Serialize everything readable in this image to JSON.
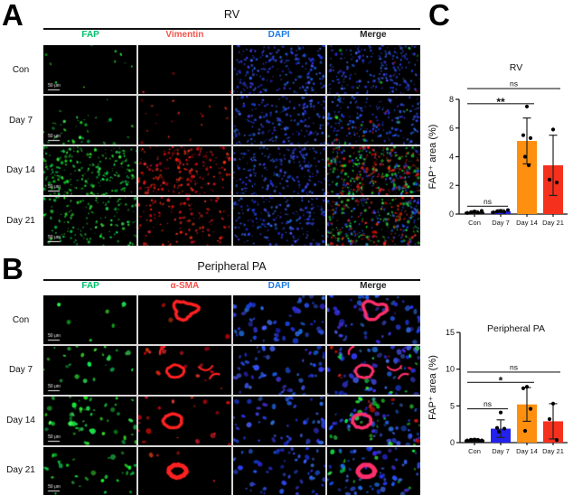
{
  "panels": {
    "A": {
      "label": "A",
      "title": "RV",
      "scale_bar_label": "50 μm",
      "columns": [
        {
          "label": "FAP",
          "color": "#00c06a"
        },
        {
          "label": "Vimentin",
          "color": "#f4534b"
        },
        {
          "label": "DAPI",
          "color": "#1c79e8"
        },
        {
          "label": "Merge",
          "color": "#222222"
        }
      ],
      "rows": [
        {
          "label": "Con",
          "cells": [
            {
              "green": 0.04
            },
            {
              "red": 0.012
            },
            {
              "blue": 0.85
            },
            {
              "blue": 0.85,
              "green": 0.02,
              "red": 0.012
            }
          ]
        },
        {
          "label": "Day 7",
          "cells": [
            {
              "green": 0.15,
              "cluster": "bl"
            },
            {
              "red": 0.07
            },
            {
              "blue": 0.85
            },
            {
              "blue": 0.8,
              "green": 0.07,
              "red": 0.05,
              "cluster": "bl"
            }
          ]
        },
        {
          "label": "Day 14",
          "cells": [
            {
              "green": 0.85
            },
            {
              "red": 0.8
            },
            {
              "blue": 0.85
            },
            {
              "green": 0.62,
              "red": 0.55,
              "blue": 0.45
            }
          ]
        },
        {
          "label": "Day 21",
          "cells": [
            {
              "green": 0.55
            },
            {
              "red": 0.45
            },
            {
              "blue": 0.85
            },
            {
              "green": 0.45,
              "red": 0.4,
              "blue": 0.5
            }
          ]
        }
      ]
    },
    "B": {
      "label": "B",
      "title": "Peripheral PA",
      "scale_bar_label": "50 μm",
      "columns": [
        {
          "label": "FAP",
          "color": "#00c06a"
        },
        {
          "label": "α-SMA",
          "color": "#f4534b"
        },
        {
          "label": "DAPI",
          "color": "#1c79e8"
        },
        {
          "label": "Merge",
          "color": "#222222"
        }
      ],
      "rows": [
        {
          "label": "Con",
          "cells": [
            {
              "green": 0.05,
              "big": true
            },
            {
              "red": 0.02,
              "big": true,
              "ring": {
                "x": 0.5,
                "y": 0.3,
                "r": 0.17,
                "w": 3.5,
                "tri": true,
                "color": "#ff2020"
              }
            },
            {
              "blue": 0.55,
              "big": true
            },
            {
              "blue": 0.55,
              "big": true,
              "ring": {
                "x": 0.5,
                "y": 0.3,
                "r": 0.17,
                "w": 3.5,
                "tri": true,
                "color": "#ff2e6a"
              }
            }
          ]
        },
        {
          "label": "Day 7",
          "cells": [
            {
              "green": 0.18,
              "big": true
            },
            {
              "red": 0.1,
              "big": true,
              "ring": {
                "x": 0.4,
                "y": 0.52,
                "r": 0.13,
                "w": 3,
                "color": "#ff2020"
              },
              "arcs": true
            },
            {
              "blue": 0.55,
              "big": true
            },
            {
              "blue": 0.55,
              "big": true,
              "green": 0.08,
              "red": 0.04,
              "ring": {
                "x": 0.4,
                "y": 0.52,
                "r": 0.13,
                "w": 3,
                "color": "#ff2e6a"
              },
              "arcs": true
            }
          ]
        },
        {
          "label": "Day 14",
          "cells": [
            {
              "green": 0.4,
              "big": true,
              "green_ring": true
            },
            {
              "red": 0.14,
              "big": true,
              "ring": {
                "x": 0.37,
                "y": 0.5,
                "r": 0.14,
                "w": 3.5,
                "color": "#ff2020"
              }
            },
            {
              "blue": 0.55,
              "big": true
            },
            {
              "blue": 0.5,
              "big": true,
              "green": 0.2,
              "red": 0.06,
              "ring": {
                "x": 0.37,
                "y": 0.5,
                "r": 0.14,
                "w": 3.5,
                "color": "#ff2e6a"
              }
            }
          ]
        },
        {
          "label": "Day 21",
          "cells": [
            {
              "green": 0.22,
              "big": true
            },
            {
              "red": 0.03,
              "big": true,
              "ring": {
                "x": 0.42,
                "y": 0.5,
                "r": 0.13,
                "w": 5,
                "color": "#ff2020"
              }
            },
            {
              "blue": 0.55,
              "big": true
            },
            {
              "blue": 0.55,
              "big": true,
              "green": 0.1,
              "ring": {
                "x": 0.42,
                "y": 0.5,
                "r": 0.13,
                "w": 5,
                "color": "#ff2e6a"
              }
            }
          ]
        }
      ]
    },
    "C": {
      "label": "C"
    }
  },
  "chart_data": [
    {
      "type": "bar",
      "title": "RV",
      "ylabel": "FAP⁺ area (%)",
      "categories": [
        "Con",
        "Day 7",
        "Day 14",
        "Day 21"
      ],
      "values": [
        0.15,
        0.2,
        5.1,
        3.4
      ],
      "sd": [
        0.08,
        0.1,
        1.6,
        2.1
      ],
      "points": [
        [
          0.08,
          0.12,
          0.18,
          0.1,
          0.22
        ],
        [
          0.12,
          0.18,
          0.22,
          0.15,
          0.28
        ],
        [
          7.5,
          5.5,
          5.3,
          4.0,
          3.4
        ],
        [
          5.9,
          2.4,
          2.2
        ]
      ],
      "bar_colors": [
        "#111111",
        "#2222ee",
        "#ff8f0e",
        "#f5301d"
      ],
      "ylim": [
        0,
        8
      ],
      "yticks": [
        0,
        2,
        4,
        6,
        8
      ],
      "grid": false,
      "comparisons": [
        {
          "from": 0,
          "to": 1,
          "label": "ns",
          "y": 0.55
        },
        {
          "from": 0,
          "to": 2,
          "label": "**",
          "y": 7.7
        },
        {
          "from": 0,
          "to": 3,
          "label": "ns",
          "y": 8.75
        }
      ]
    },
    {
      "type": "bar",
      "title": "Peripheral PA",
      "ylabel": "FAP⁺ area (%)",
      "categories": [
        "Con",
        "Day 7",
        "Day 14",
        "Day 21"
      ],
      "values": [
        0.4,
        1.9,
        5.2,
        2.9
      ],
      "sd": [
        0.12,
        1.2,
        2.3,
        2.4
      ],
      "points": [
        [
          0.3,
          0.38,
          0.42,
          0.35,
          0.3
        ],
        [
          4.1,
          2.0,
          1.9,
          1.5
        ],
        [
          7.6,
          7.4,
          4.6,
          1.6
        ],
        [
          5.3,
          3.2,
          0.35
        ]
      ],
      "bar_colors": [
        "#111111",
        "#2222ee",
        "#ff8f0e",
        "#f5301d"
      ],
      "ylim": [
        0,
        15
      ],
      "yticks": [
        0,
        5,
        10,
        15
      ],
      "grid": false,
      "comparisons": [
        {
          "from": 0,
          "to": 1,
          "label": "ns",
          "y": 4.6
        },
        {
          "from": 0,
          "to": 2,
          "label": "*",
          "y": 8.2
        },
        {
          "from": 0,
          "to": 3,
          "label": "ns",
          "y": 9.6
        }
      ]
    }
  ]
}
